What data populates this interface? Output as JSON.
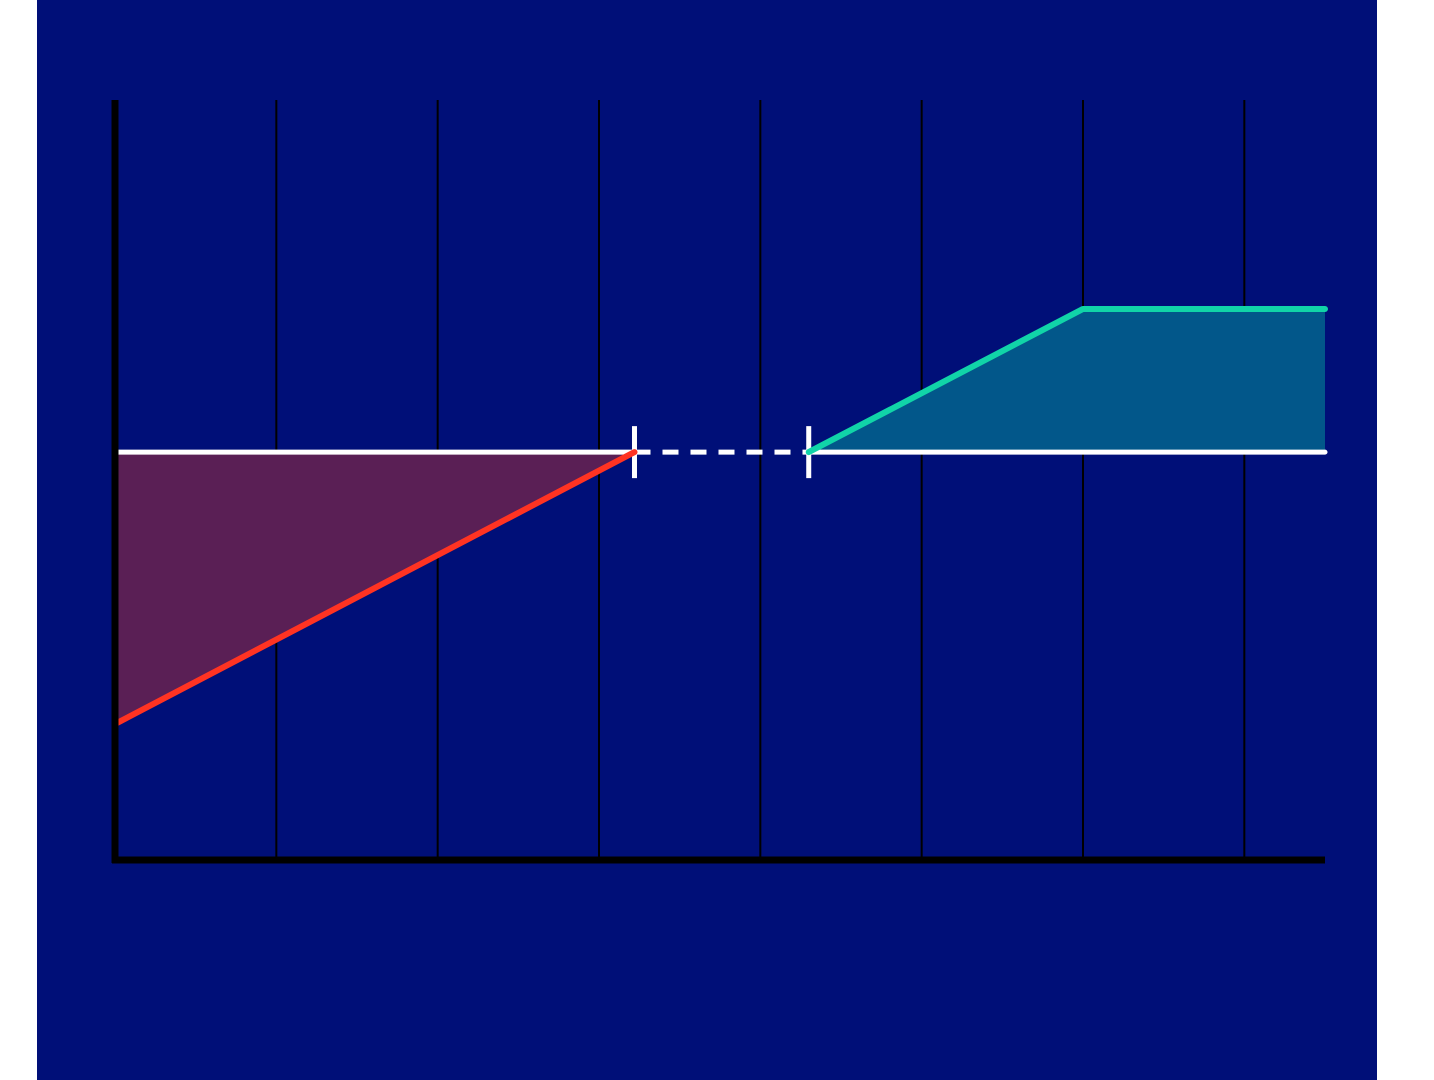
{
  "chart_data": {
    "type": "line",
    "xlim": [
      0,
      7.5
    ],
    "xticks": [
      1,
      2,
      3,
      4,
      5,
      6,
      7
    ],
    "grid": true,
    "ylim": [
      -2.85,
      2.46
    ],
    "background": "#000f78",
    "baseline_color": "#ffffff",
    "series": [
      {
        "color": "#ff3322",
        "fill": "#5a1f55",
        "x": [
          0,
          3.22
        ],
        "values": [
          -1.9,
          0
        ]
      },
      {
        "color": "#11d4a8",
        "fill": "#02578a",
        "x": [
          4.3,
          6,
          7.5
        ],
        "values": [
          0,
          1,
          1
        ]
      }
    ]
  }
}
